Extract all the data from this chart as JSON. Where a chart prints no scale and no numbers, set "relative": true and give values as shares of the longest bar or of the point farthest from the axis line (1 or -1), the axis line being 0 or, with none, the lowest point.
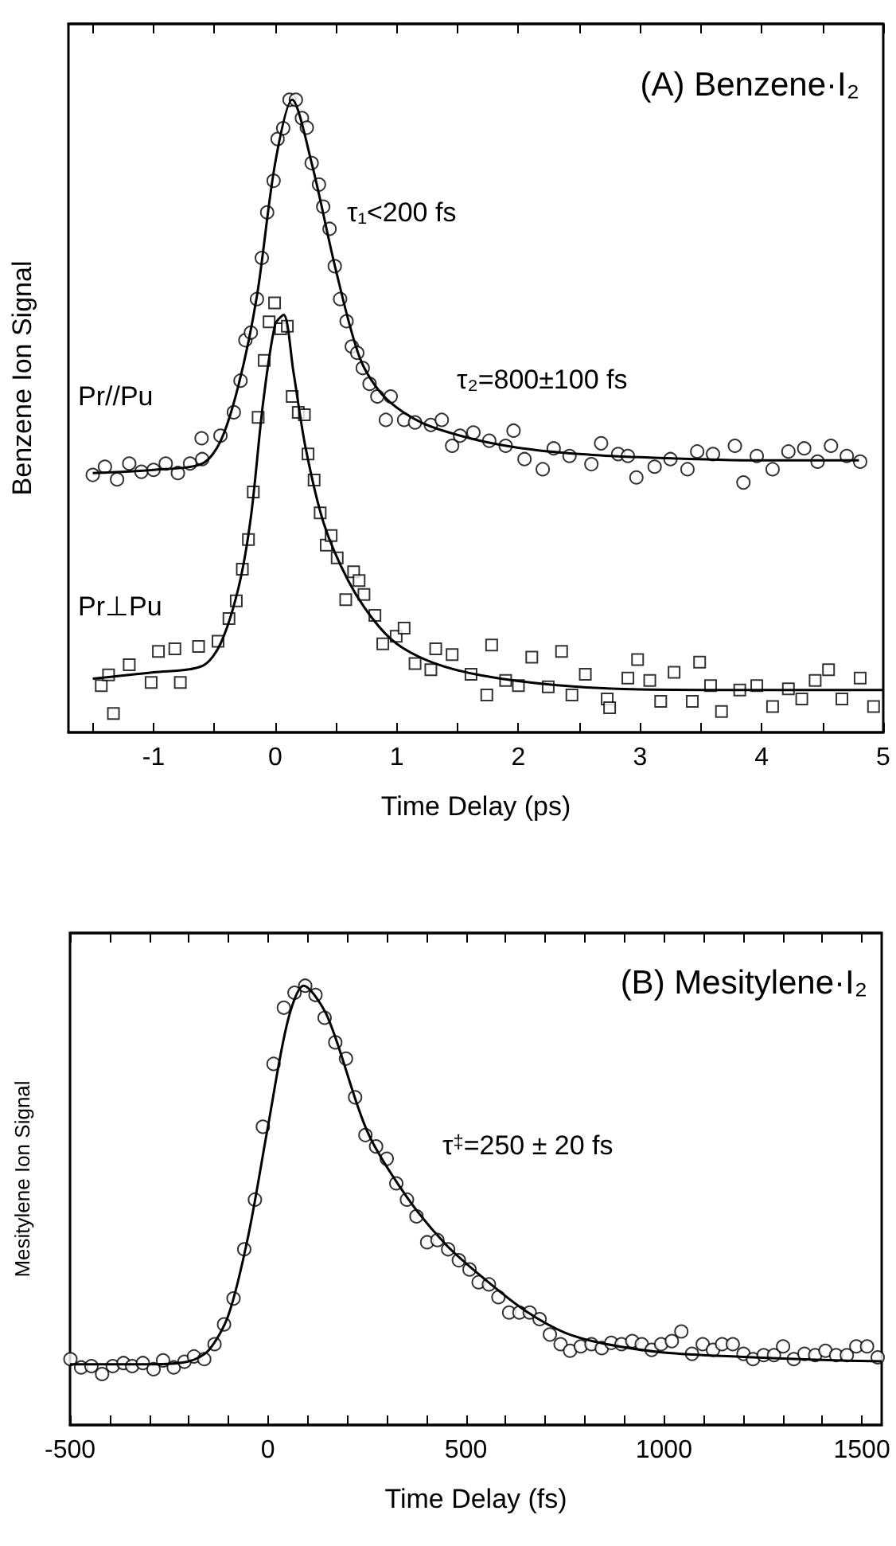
{
  "chart_data": [
    {
      "type": "scatter",
      "title": "(A) Benzene·I₂",
      "xlabel": "Time Delay (ps)",
      "ylabel": "Benzene Ion Signal",
      "relative": true,
      "xlim": [
        -1.7,
        5
      ],
      "xticks": [
        {
          "value": -1.5,
          "label": null
        },
        -1,
        {
          "value": -0.5,
          "label": null
        },
        0,
        {
          "value": 0.5,
          "label": null
        },
        1,
        {
          "value": 1.5,
          "label": null
        },
        2,
        {
          "value": 2.5,
          "label": null
        },
        3,
        {
          "value": 3.5,
          "label": null
        },
        4,
        {
          "value": 4.5,
          "label": null
        },
        5
      ],
      "annotations": [
        "τ₁<200 fs",
        "τ₂=800±100 fs"
      ],
      "series": [
        {
          "name": "Pr//Pu",
          "color": "#000000",
          "marker": "circle",
          "x": [
            -1.5,
            -1.4,
            -1.3,
            -1.2,
            -1.1,
            -1.0,
            -0.9,
            -0.8,
            -0.7,
            -0.6,
            -0.605,
            -0.45,
            -0.34,
            -0.285,
            -0.245,
            -0.2,
            -0.15,
            -0.11,
            -0.066,
            -0.013,
            0.02,
            0.066,
            0.118,
            0.17,
            0.22,
            0.26,
            0.3,
            0.36,
            0.395,
            0.447,
            0.49,
            0.534,
            0.587,
            0.63,
            0.675,
            0.72,
            0.776,
            0.84,
            0.95,
            0.91,
            1.06,
            1.15,
            1.28,
            1.37,
            1.455,
            1.52,
            1.63,
            1.76,
            1.895,
            1.96,
            2.05,
            2.2,
            2.29,
            2.42,
            2.6,
            2.68,
            2.82,
            2.9,
            2.97,
            3.12,
            3.25,
            3.39,
            3.47,
            3.6,
            3.78,
            3.85,
            3.96,
            4.09,
            4.22,
            4.35,
            4.46,
            4.57,
            4.7,
            4.81
          ],
          "values": [
            0.407,
            0.42,
            0.4,
            0.425,
            0.412,
            0.415,
            0.425,
            0.41,
            0.425,
            0.432,
            0.465,
            0.469,
            0.506,
            0.556,
            0.62,
            0.632,
            0.685,
            0.75,
            0.822,
            0.872,
            0.938,
            0.955,
            1.0,
            1.0,
            0.971,
            0.956,
            0.9,
            0.866,
            0.831,
            0.796,
            0.737,
            0.685,
            0.65,
            0.61,
            0.6,
            0.576,
            0.551,
            0.531,
            0.531,
            0.494,
            0.494,
            0.49,
            0.486,
            0.494,
            0.453,
            0.469,
            0.474,
            0.461,
            0.453,
            0.477,
            0.432,
            0.416,
            0.449,
            0.437,
            0.424,
            0.457,
            0.44,
            0.437,
            0.403,
            0.42,
            0.432,
            0.416,
            0.444,
            0.44,
            0.453,
            0.395,
            0.437,
            0.416,
            0.444,
            0.449,
            0.428,
            0.453,
            0.437,
            0.428
          ]
        },
        {
          "name": "Pr⊥Pu",
          "color": "#000000",
          "marker": "square",
          "x": [
            -1.43,
            -1.33,
            -1.37,
            -1.2,
            -1.02,
            -0.96,
            -0.825,
            -0.78,
            -0.63,
            -0.47,
            -0.38,
            -0.32,
            -0.27,
            -0.22,
            -0.18,
            -0.14,
            -0.09,
            -0.05,
            -0.005,
            0.045,
            0.1,
            0.14,
            0.19,
            0.24,
            0.27,
            0.32,
            0.37,
            0.42,
            0.46,
            0.51,
            0.58,
            0.645,
            0.69,
            0.73,
            0.82,
            0.885,
            0.995,
            1.06,
            1.15,
            1.28,
            1.32,
            1.455,
            1.61,
            1.74,
            1.78,
            1.895,
            2.0,
            2.11,
            2.245,
            2.355,
            2.44,
            2.55,
            2.73,
            2.75,
            2.9,
            2.98,
            3.08,
            3.17,
            3.28,
            3.43,
            3.49,
            3.58,
            3.67,
            3.82,
            3.96,
            4.09,
            4.22,
            4.33,
            4.44,
            4.55,
            4.66,
            4.81,
            4.92
          ],
          "values": [
            0.074,
            0.03,
            0.091,
            0.107,
            0.079,
            0.128,
            0.132,
            0.079,
            0.136,
            0.144,
            0.18,
            0.208,
            0.258,
            0.305,
            0.38,
            0.498,
            0.588,
            0.649,
            0.679,
            0.638,
            0.642,
            0.531,
            0.506,
            0.502,
            0.44,
            0.399,
            0.347,
            0.296,
            0.311,
            0.276,
            0.21,
            0.254,
            0.24,
            0.218,
            0.185,
            0.14,
            0.152,
            0.165,
            0.109,
            0.099,
            0.132,
            0.123,
            0.092,
            0.059,
            0.138,
            0.082,
            0.074,
            0.119,
            0.072,
            0.128,
            0.059,
            0.092,
            0.053,
            0.039,
            0.086,
            0.115,
            0.082,
            0.049,
            0.095,
            0.049,
            0.111,
            0.074,
            0.033,
            0.067,
            0.074,
            0.041,
            0.069,
            0.053,
            0.082,
            0.099,
            0.053,
            0.086,
            0.041
          ]
        },
        {
          "type": "line",
          "color": "#000000",
          "x": [
            -1.5,
            -1.0,
            -0.6,
            -0.45,
            -0.3,
            -0.15,
            0.0,
            0.14,
            0.3,
            0.5,
            0.7,
            0.9,
            1.2,
            1.6,
            2.0,
            2.5,
            3.0,
            4.0,
            4.8
          ],
          "values": [
            0.41,
            0.415,
            0.425,
            0.46,
            0.55,
            0.69,
            0.9,
            1.0,
            0.9,
            0.73,
            0.59,
            0.53,
            0.49,
            0.465,
            0.45,
            0.44,
            0.435,
            0.43,
            0.43
          ]
        },
        {
          "type": "line",
          "color": "#000000",
          "x": [
            -1.5,
            -1.0,
            -0.6,
            -0.45,
            -0.3,
            -0.2,
            -0.1,
            0.0,
            0.07,
            0.15,
            0.25,
            0.4,
            0.6,
            0.8,
            1.0,
            1.3,
            1.7,
            2.3,
            3.0,
            4.0,
            5.0
          ],
          "values": [
            0.085,
            0.095,
            0.105,
            0.14,
            0.23,
            0.34,
            0.52,
            0.645,
            0.66,
            0.57,
            0.45,
            0.33,
            0.24,
            0.18,
            0.14,
            0.11,
            0.09,
            0.075,
            0.068,
            0.067,
            0.067
          ]
        }
      ]
    },
    {
      "type": "scatter",
      "title": "(B) Mesitylene·I₂",
      "xlabel": "Time Delay (fs)",
      "ylabel": "Mesitylene Ion Signal",
      "relative": true,
      "xlim": [
        -500,
        1550
      ],
      "xticks": [
        -500,
        {
          "value": -400,
          "label": null
        },
        {
          "value": -300,
          "label": null
        },
        {
          "value": -200,
          "label": null
        },
        {
          "value": -100,
          "label": null
        },
        0,
        {
          "value": 100,
          "label": null
        },
        {
          "value": 200,
          "label": null
        },
        {
          "value": 300,
          "label": null
        },
        {
          "value": 400,
          "label": null
        },
        500,
        {
          "value": 600,
          "label": null
        },
        {
          "value": 700,
          "label": null
        },
        {
          "value": 800,
          "label": null
        },
        {
          "value": 900,
          "label": null
        },
        1000,
        {
          "value": 1100,
          "label": null
        },
        {
          "value": 1200,
          "label": null
        },
        {
          "value": 1300,
          "label": null
        },
        {
          "value": 1400,
          "label": null
        },
        1500
      ],
      "annotations": [
        "τ$^{‡}$=250 ± 20 fs"
      ],
      "series": [
        {
          "color": "#000000",
          "marker": "circle",
          "x": [
            -499,
            -472,
            -446,
            -419,
            -392,
            -365,
            -343,
            -316,
            -289,
            -265,
            -238,
            -211,
            -187,
            -161,
            -135,
            -111,
            -87,
            -60,
            -33,
            -13,
            14,
            40,
            67,
            94,
            120,
            143,
            170,
            197,
            220,
            246,
            273,
            300,
            324,
            351,
            375,
            402,
            428,
            455,
            482,
            509,
            532,
            558,
            582,
            609,
            635,
            661,
            686,
            712,
            739,
            763,
            790,
            817,
            843,
            867,
            893,
            920,
            944,
            969,
            993,
            1020,
            1044,
            1071,
            1098,
            1124,
            1147,
            1174,
            1201,
            1225,
            1252,
            1278,
            1301,
            1328,
            1355,
            1382,
            1408,
            1435,
            1462,
            1486,
            1513,
            1540
          ],
          "values": [
            0.15,
            0.131,
            0.134,
            0.116,
            0.134,
            0.141,
            0.134,
            0.141,
            0.127,
            0.147,
            0.131,
            0.144,
            0.156,
            0.15,
            0.184,
            0.229,
            0.288,
            0.4,
            0.513,
            0.679,
            0.822,
            0.95,
            0.984,
            1.0,
            0.979,
            0.927,
            0.871,
            0.834,
            0.746,
            0.66,
            0.634,
            0.606,
            0.55,
            0.513,
            0.475,
            0.416,
            0.421,
            0.4,
            0.375,
            0.354,
            0.325,
            0.32,
            0.291,
            0.256,
            0.256,
            0.256,
            0.241,
            0.206,
            0.184,
            0.169,
            0.179,
            0.184,
            0.175,
            0.187,
            0.184,
            0.191,
            0.184,
            0.171,
            0.184,
            0.191,
            0.213,
            0.162,
            0.184,
            0.171,
            0.184,
            0.184,
            0.162,
            0.15,
            0.159,
            0.159,
            0.179,
            0.15,
            0.162,
            0.159,
            0.169,
            0.159,
            0.159,
            0.179,
            0.179,
            0.154
          ]
        },
        {
          "type": "line",
          "color": "#000000",
          "x": [
            -500,
            -300,
            -200,
            -150,
            -100,
            -50,
            0,
            50,
            90,
            150,
            250,
            350,
            450,
            550,
            650,
            750,
            850,
            1000,
            1200,
            1400,
            1550
          ],
          "values": [
            0.138,
            0.138,
            0.145,
            0.17,
            0.25,
            0.43,
            0.68,
            0.92,
            1.0,
            0.93,
            0.67,
            0.52,
            0.41,
            0.33,
            0.26,
            0.21,
            0.185,
            0.165,
            0.155,
            0.148,
            0.145
          ]
        }
      ]
    }
  ]
}
